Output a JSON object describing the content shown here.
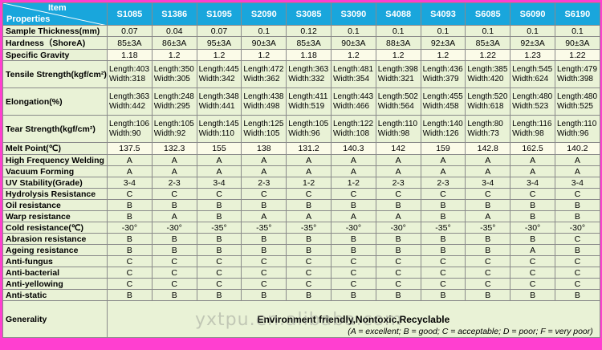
{
  "header": {
    "item_label": "Item",
    "properties_label": "Properties"
  },
  "columns": [
    "S1085",
    "S1386",
    "S1095",
    "S2090",
    "S3085",
    "S3090",
    "S4088",
    "S4093",
    "S6085",
    "S6090",
    "S6190"
  ],
  "rows": {
    "thickness": {
      "label": "Sample Thickness(mm)",
      "values": [
        "0.07",
        "0.04",
        "0.07",
        "0.1",
        "0.12",
        "0.1",
        "0.1",
        "0.1",
        "0.1",
        "0.1",
        "0.1"
      ]
    },
    "hardness": {
      "label": "Hardness（ShoreA)",
      "values": [
        "85±3A",
        "86±3A",
        "95±3A",
        "90±3A",
        "85±3A",
        "90±3A",
        "88±3A",
        "92±3A",
        "85±3A",
        "92±3A",
        "90±3A"
      ]
    },
    "gravity": {
      "label": "Specific Gravity",
      "values": [
        "1.18",
        "1.2",
        "1.2",
        "1.2",
        "1.18",
        "1.2",
        "1.2",
        "1.2",
        "1.22",
        "1.23",
        "1.22"
      ]
    },
    "tensile": {
      "label": "Tensile Strength(kgf/cm²)",
      "length": [
        "Length:403",
        "Length:350",
        "Length:445",
        "Length:472",
        "Length:363",
        "Length:481",
        "Length:398",
        "Length:436",
        "Length:385",
        "Length:545",
        "Length:479"
      ],
      "width": [
        "Width:318",
        "Width:305",
        "Width:342",
        "Width:362",
        "Width:332",
        "Width:354",
        "Width:321",
        "Width:379",
        "Width:420",
        "Width:624",
        "Width:398"
      ]
    },
    "elongation": {
      "label": "Elongation(%)",
      "length": [
        "Length:363",
        "Length:248",
        "Length:348",
        "Length:438",
        "Length:411",
        "Length:443",
        "Length:502",
        "Length:455",
        "Length:520",
        "Length:480",
        "Length:480"
      ],
      "width": [
        "Width:442",
        "Width:295",
        "Width:441",
        "Width:498",
        "Width:519",
        "Width:466",
        "Width:564",
        "Width:458",
        "Width:618",
        "Width:523",
        "Width:525"
      ]
    },
    "tear": {
      "label": "Tear Strength(kgf/cm²)",
      "length": [
        "Length:106",
        "Length:105",
        "Length:145",
        "Length:125",
        "Length:105",
        "Length:122",
        "Length:110",
        "Length:140",
        "Length:80",
        "Length:116",
        "Length:110"
      ],
      "width": [
        "Width:90",
        "Width:92",
        "Width:110",
        "Width:105",
        "Width:96",
        "Width:108",
        "Width:98",
        "Width:126",
        "Width:73",
        "Width:98",
        "Width:96"
      ]
    },
    "melt": {
      "label": "Melt Point(℃)",
      "values": [
        "137.5",
        "132.3",
        "155",
        "138",
        "131.2",
        "140.3",
        "142",
        "159",
        "142.8",
        "162.5",
        "140.2"
      ]
    },
    "hf_welding": {
      "label": "High Frequency Welding",
      "values": [
        "A",
        "A",
        "A",
        "A",
        "A",
        "A",
        "A",
        "A",
        "A",
        "A",
        "A"
      ]
    },
    "vacuum": {
      "label": "Vacuum Forming",
      "values": [
        "A",
        "A",
        "A",
        "A",
        "A",
        "A",
        "A",
        "A",
        "A",
        "A",
        "A"
      ]
    },
    "uv": {
      "label": "UV Stability(Grade)",
      "values": [
        "3-4",
        "2-3",
        "3-4",
        "2-3",
        "1-2",
        "1-2",
        "2-3",
        "2-3",
        "3-4",
        "3-4",
        "3-4"
      ]
    },
    "hydrolysis": {
      "label": "Hydrolysis Resistance",
      "values": [
        "C",
        "C",
        "C",
        "C",
        "C",
        "C",
        "C",
        "C",
        "C",
        "C",
        "C"
      ]
    },
    "oil": {
      "label": "Oil resistance",
      "values": [
        "B",
        "B",
        "B",
        "B",
        "B",
        "B",
        "B",
        "B",
        "B",
        "B",
        "B"
      ]
    },
    "warp": {
      "label": "Warp resistance",
      "values": [
        "B",
        "A",
        "B",
        "A",
        "A",
        "A",
        "A",
        "B",
        "A",
        "B",
        "B"
      ]
    },
    "cold": {
      "label": "Cold resistance(℃)",
      "values": [
        "-30°",
        "-30°",
        "-35°",
        "-35°",
        "-35°",
        "-30°",
        "-30°",
        "-35°",
        "-35°",
        "-30°",
        "-30°"
      ]
    },
    "abrasion": {
      "label": "Abrasion resistance",
      "values": [
        "B",
        "B",
        "B",
        "B",
        "B",
        "B",
        "B",
        "B",
        "B",
        "B",
        "C"
      ]
    },
    "ageing": {
      "label": "Ageing resistance",
      "values": [
        "B",
        "B",
        "B",
        "B",
        "B",
        "B",
        "B",
        "B",
        "B",
        "A",
        "B"
      ]
    },
    "antifungus": {
      "label": "Anti-fungus",
      "values": [
        "C",
        "C",
        "C",
        "C",
        "C",
        "C",
        "C",
        "C",
        "C",
        "C",
        "C"
      ]
    },
    "antibacterial": {
      "label": "Anti-bacterial",
      "values": [
        "C",
        "C",
        "C",
        "C",
        "C",
        "C",
        "C",
        "C",
        "C",
        "C",
        "C"
      ]
    },
    "antiyellowing": {
      "label": "Anti-yellowing",
      "values": [
        "C",
        "C",
        "C",
        "C",
        "C",
        "C",
        "C",
        "C",
        "C",
        "C",
        "C"
      ]
    },
    "antistatic": {
      "label": "Anti-static",
      "values": [
        "B",
        "B",
        "B",
        "B",
        "B",
        "B",
        "B",
        "B",
        "B",
        "B",
        "B"
      ]
    }
  },
  "generality": {
    "label": "Generality",
    "text": "Environment friendly,Nontoxic,Recyclable",
    "note": "(A = excellent; B = good; C = acceptable; D = poor; F = very poor)"
  },
  "watermark": "yxtpu.en.alibaba.com",
  "colors": {
    "header": "#19a6dc",
    "border": "#ff3fd0",
    "label_bg": "#e9f2d6",
    "cell_bg": "#fbfbe8"
  }
}
